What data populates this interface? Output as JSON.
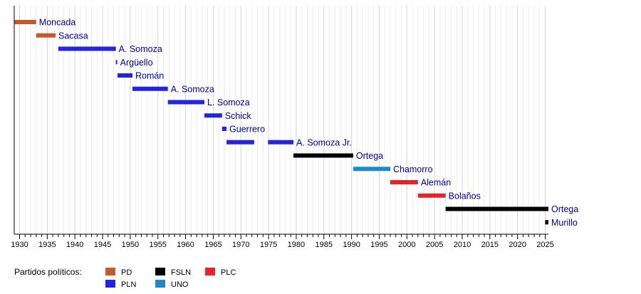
{
  "chart_data": {
    "type": "bar",
    "subtype": "timeline",
    "x_axis": {
      "range": [
        1930,
        2026
      ],
      "major_ticks": [
        1930,
        1935,
        1940,
        1945,
        1950,
        1955,
        1960,
        1965,
        1970,
        1975,
        1980,
        1985,
        1990,
        1995,
        2000,
        2005,
        2010,
        2015,
        2020,
        2025
      ],
      "minor_tick_step": 1
    },
    "grid": true,
    "legend": {
      "position": "bottom-left",
      "title": "Partidos políticos:",
      "entries": [
        {
          "party": "PD",
          "color": "#c55a28"
        },
        {
          "party": "PLN",
          "color": "#2323e6"
        },
        {
          "party": "FSLN",
          "color": "#000000"
        },
        {
          "party": "UNO",
          "color": "#1e88c8"
        },
        {
          "party": "PLC",
          "color": "#e82228"
        }
      ]
    },
    "label_color": "#0000a0",
    "rows": [
      {
        "name": "Moncada",
        "segments": [
          {
            "start": 1929.0,
            "end": 1933.0,
            "party": "PD"
          }
        ]
      },
      {
        "name": "Sacasa",
        "segments": [
          {
            "start": 1933.0,
            "end": 1936.5,
            "party": "PD"
          }
        ]
      },
      {
        "name": "A. Somoza",
        "segments": [
          {
            "start": 1937.0,
            "end": 1947.4,
            "party": "PLN"
          }
        ]
      },
      {
        "name": "Argüello",
        "segments": [
          {
            "start": 1947.4,
            "end": 1947.5,
            "party": "PLN"
          }
        ]
      },
      {
        "name": "Román",
        "segments": [
          {
            "start": 1947.7,
            "end": 1950.4,
            "party": "PLN"
          }
        ]
      },
      {
        "name": "A. Somoza",
        "segments": [
          {
            "start": 1950.4,
            "end": 1956.8,
            "party": "PLN"
          }
        ]
      },
      {
        "name": "L. Somoza",
        "segments": [
          {
            "start": 1956.8,
            "end": 1963.4,
            "party": "PLN"
          }
        ]
      },
      {
        "name": "Schick",
        "segments": [
          {
            "start": 1963.4,
            "end": 1966.6,
            "party": "PLN"
          }
        ]
      },
      {
        "name": "Guerrero",
        "segments": [
          {
            "start": 1966.6,
            "end": 1967.4,
            "party": "PLN"
          }
        ]
      },
      {
        "name": "A. Somoza Jr.",
        "segments": [
          {
            "start": 1967.4,
            "end": 1972.4,
            "party": "PLN"
          },
          {
            "start": 1974.9,
            "end": 1979.5,
            "party": "PLN"
          }
        ]
      },
      {
        "name": "Ortega",
        "segments": [
          {
            "start": 1979.5,
            "end": 1990.3,
            "party": "FSLN"
          }
        ]
      },
      {
        "name": "Chamorro",
        "segments": [
          {
            "start": 1990.3,
            "end": 1997.0,
            "party": "UNO"
          }
        ]
      },
      {
        "name": "Alemán",
        "segments": [
          {
            "start": 1997.0,
            "end": 2002.0,
            "party": "PLC"
          }
        ]
      },
      {
        "name": "Bolaños",
        "segments": [
          {
            "start": 2002.0,
            "end": 2007.0,
            "party": "PLC"
          }
        ]
      },
      {
        "name": "Ortega",
        "segments": [
          {
            "start": 2007.0,
            "end": 2025.7,
            "party": "FSLN"
          }
        ]
      },
      {
        "name": "Murillo",
        "segments": [
          {
            "start": 2025.0,
            "end": 2025.7,
            "party": "FSLN"
          }
        ]
      }
    ]
  }
}
